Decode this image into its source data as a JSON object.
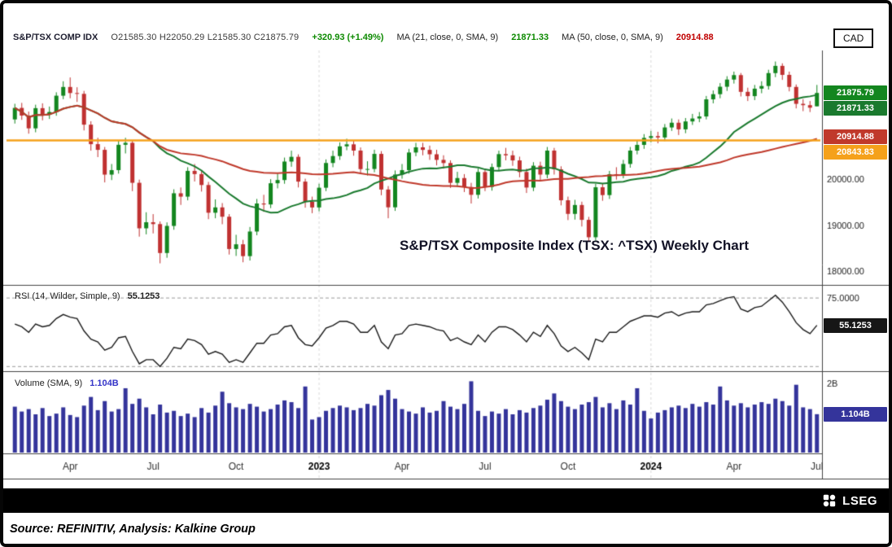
{
  "header": {
    "symbol": "S&P/TSX COMP IDX",
    "ohlc": "O21585.30  H22050.29  L21585.30  C21875.79",
    "change": "+320.93  (+1.49%)",
    "ma21_label": "MA (21, close, 0, SMA, 9)",
    "ma21_value": "21871.33",
    "ma50_label": "MA (50, close, 0, SMA, 9)",
    "ma50_value": "20914.88",
    "currency": "CAD"
  },
  "footer": {
    "logo_text": "LSEG",
    "source": "Source: REFINITIV, Analysis: Kalkine Group"
  },
  "chart_data": [
    {
      "type": "candlestick",
      "panel": "price",
      "title": "S&P/TSX Composite Index (TSX: ^TSX) Weekly Chart",
      "ylim": [
        17700,
        22800
      ],
      "up_color": "#13861F",
      "down_color": "#C03131",
      "ma": [
        {
          "period": 21,
          "color": "#1A7A2E",
          "value": 21871.33
        },
        {
          "period": 50,
          "color": "#C0392B",
          "value": 20914.88
        }
      ],
      "level": 20843.83,
      "level_color": "#F5A11B",
      "y_ticks": [
        {
          "value": 20000,
          "label": "20000.00"
        },
        {
          "value": 19000,
          "label": "19000.00"
        },
        {
          "value": 18000,
          "label": "18000.00"
        }
      ],
      "x_ticks": [
        {
          "i": 8,
          "label": "Apr"
        },
        {
          "i": 20,
          "label": "Jul"
        },
        {
          "i": 32,
          "label": "Oct"
        },
        {
          "i": 44,
          "label": "2023",
          "bold": true
        },
        {
          "i": 56,
          "label": "Apr"
        },
        {
          "i": 68,
          "label": "Jul"
        },
        {
          "i": 80,
          "label": "Oct"
        },
        {
          "i": 92,
          "label": "2024",
          "bold": true
        },
        {
          "i": 104,
          "label": "Apr"
        },
        {
          "i": 116,
          "label": "Jul"
        }
      ],
      "axis_badges": [
        {
          "label": "21875.79",
          "value": 21875.79,
          "bg": "#13861F"
        },
        {
          "label": "21871.33",
          "value": 21871.33,
          "bg": "#1A7A2E"
        },
        {
          "label": "20914.88",
          "value": 20914.88,
          "bg": "#C0392B"
        },
        {
          "label": "20843.83",
          "value": 20843.83,
          "bg": "#F5A11B"
        }
      ],
      "candles": [
        [
          21300,
          21640,
          21210,
          21550
        ],
        [
          21550,
          21660,
          21290,
          21384
        ],
        [
          21384,
          21470,
          20990,
          21106
        ],
        [
          21106,
          21620,
          21020,
          21545
        ],
        [
          21545,
          21650,
          21280,
          21402
        ],
        [
          21402,
          21580,
          21310,
          21461
        ],
        [
          21461,
          21890,
          21380,
          21816
        ],
        [
          21816,
          22130,
          21740,
          22006
        ],
        [
          22006,
          22213,
          21760,
          21874
        ],
        [
          21874,
          22000,
          21680,
          21856
        ],
        [
          21856,
          21920,
          21060,
          21186
        ],
        [
          21186,
          21260,
          20620,
          20762
        ],
        [
          20762,
          20900,
          20480,
          20638
        ],
        [
          20638,
          20700,
          19930,
          20099
        ],
        [
          20099,
          20330,
          19980,
          20197
        ],
        [
          20197,
          20840,
          20120,
          20748
        ],
        [
          20748,
          20900,
          20560,
          20791
        ],
        [
          20791,
          20850,
          19740,
          19921
        ],
        [
          19921,
          19990,
          18750,
          18931
        ],
        [
          18931,
          19280,
          18800,
          19063
        ],
        [
          19063,
          19240,
          18820,
          19023
        ],
        [
          19023,
          19080,
          18169,
          18394
        ],
        [
          18394,
          19060,
          18290,
          18983
        ],
        [
          18983,
          19780,
          18900,
          19693
        ],
        [
          19693,
          19820,
          19440,
          19620
        ],
        [
          19620,
          20260,
          19540,
          20180
        ],
        [
          20180,
          20330,
          19950,
          20111
        ],
        [
          20111,
          20180,
          19730,
          19873
        ],
        [
          19873,
          19940,
          19130,
          19270
        ],
        [
          19270,
          19560,
          19150,
          19386
        ],
        [
          19386,
          19480,
          19020,
          19183
        ],
        [
          19183,
          19240,
          18360,
          18481
        ],
        [
          18481,
          18790,
          18330,
          18583
        ],
        [
          18583,
          18680,
          18192,
          18326
        ],
        [
          18326,
          18960,
          18230,
          18861
        ],
        [
          18861,
          19570,
          18780,
          19471
        ],
        [
          19471,
          19660,
          19290,
          19450
        ],
        [
          19450,
          20000,
          19370,
          19911
        ],
        [
          19911,
          20120,
          19800,
          19981
        ],
        [
          19981,
          20470,
          19900,
          20383
        ],
        [
          20383,
          20620,
          20270,
          20486
        ],
        [
          20486,
          20540,
          19820,
          19947
        ],
        [
          19947,
          20010,
          19380,
          19507
        ],
        [
          19507,
          19620,
          19260,
          19385
        ],
        [
          19385,
          19900,
          19300,
          19814
        ],
        [
          19814,
          20430,
          19740,
          20352
        ],
        [
          20352,
          20620,
          20260,
          20503
        ],
        [
          20503,
          20800,
          20420,
          20714
        ],
        [
          20714,
          20880,
          20630,
          20758
        ],
        [
          20758,
          20850,
          20510,
          20622
        ],
        [
          20622,
          20690,
          20110,
          20219
        ],
        [
          20219,
          20390,
          20080,
          20222
        ],
        [
          20222,
          20640,
          20150,
          20550
        ],
        [
          20550,
          20610,
          19650,
          19775
        ],
        [
          19775,
          19850,
          19150,
          19388
        ],
        [
          19388,
          20190,
          19310,
          20100
        ],
        [
          20100,
          20330,
          20010,
          20196
        ],
        [
          20196,
          20660,
          20120,
          20580
        ],
        [
          20580,
          20790,
          20500,
          20693
        ],
        [
          20693,
          20790,
          20520,
          20637
        ],
        [
          20637,
          20730,
          20420,
          20542
        ],
        [
          20542,
          20640,
          20300,
          20420
        ],
        [
          20420,
          20520,
          20230,
          20351
        ],
        [
          20351,
          20410,
          19810,
          19920
        ],
        [
          19920,
          20160,
          19830,
          20024
        ],
        [
          20024,
          20110,
          19720,
          19830
        ],
        [
          19830,
          19920,
          19470,
          19660
        ],
        [
          19660,
          20230,
          19580,
          20155
        ],
        [
          20155,
          20220,
          19740,
          19831
        ],
        [
          19831,
          20340,
          19750,
          20263
        ],
        [
          20263,
          20620,
          20180,
          20545
        ],
        [
          20545,
          20680,
          20410,
          20519
        ],
        [
          20519,
          20620,
          20290,
          20408
        ],
        [
          20408,
          20490,
          20040,
          20156
        ],
        [
          20156,
          20230,
          19700,
          19818
        ],
        [
          19818,
          20370,
          19740,
          20293
        ],
        [
          20293,
          20380,
          19980,
          20100
        ],
        [
          20100,
          20700,
          20020,
          20622
        ],
        [
          20622,
          20680,
          20100,
          20214
        ],
        [
          20214,
          20280,
          19430,
          19541
        ],
        [
          19541,
          19620,
          19110,
          19245
        ],
        [
          19245,
          19550,
          19120,
          19438
        ],
        [
          19438,
          19510,
          18970,
          19115
        ],
        [
          19115,
          19180,
          18650,
          18737
        ],
        [
          18737,
          19900,
          18660,
          19824
        ],
        [
          19824,
          19910,
          19530,
          19654
        ],
        [
          19654,
          20180,
          19570,
          20108
        ],
        [
          20108,
          20260,
          19990,
          20103
        ],
        [
          20103,
          20420,
          20020,
          20331
        ],
        [
          20331,
          20700,
          20250,
          20622
        ],
        [
          20622,
          20840,
          20540,
          20746
        ],
        [
          20746,
          20980,
          20660,
          20898
        ],
        [
          20898,
          21050,
          20800,
          20937
        ],
        [
          20937,
          21030,
          20780,
          20907
        ],
        [
          20907,
          21200,
          20830,
          21125
        ],
        [
          21125,
          21320,
          21050,
          21228
        ],
        [
          21228,
          21300,
          20960,
          21084
        ],
        [
          21084,
          21330,
          21000,
          21256
        ],
        [
          21256,
          21420,
          21180,
          21320
        ],
        [
          21320,
          21460,
          21240,
          21364
        ],
        [
          21364,
          21810,
          21300,
          21737
        ],
        [
          21737,
          21930,
          21650,
          21849
        ],
        [
          21849,
          22090,
          21760,
          22011
        ],
        [
          22011,
          22240,
          21920,
          22167
        ],
        [
          22167,
          22340,
          22080,
          22264
        ],
        [
          22264,
          22310,
          21800,
          21900
        ],
        [
          21900,
          21990,
          21700,
          21807
        ],
        [
          21807,
          22050,
          21720,
          21969
        ],
        [
          21969,
          22130,
          21870,
          22027
        ],
        [
          22027,
          22380,
          21950,
          22308
        ],
        [
          22308,
          22560,
          22220,
          22465
        ],
        [
          22465,
          22520,
          22160,
          22269
        ],
        [
          22269,
          22340,
          21910,
          22007
        ],
        [
          22007,
          22060,
          21540,
          21639
        ],
        [
          21639,
          21740,
          21480,
          21610
        ],
        [
          21610,
          21700,
          21460,
          21554.86
        ],
        [
          21585.3,
          22050.29,
          21585.3,
          21875.79
        ]
      ]
    },
    {
      "type": "line",
      "panel": "rsi",
      "label": "RSI (14, Wilder, Simple, 9)",
      "value_label": "55.1253",
      "badge": {
        "label": "55.1253",
        "value": 55.1253,
        "bg": "#161616"
      },
      "ylim": [
        24,
        81
      ],
      "bands": [
        75,
        25
      ],
      "band_labels": [
        {
          "value": 75,
          "label": "75.0000"
        }
      ],
      "color": "#1A1A1A",
      "values": [
        56,
        54,
        50,
        56,
        54,
        55,
        60,
        63,
        61,
        60,
        51,
        45,
        43,
        37,
        39,
        46,
        47,
        36,
        27,
        30,
        30,
        25,
        31,
        39,
        38,
        45,
        44,
        41,
        34,
        36,
        34,
        28,
        30,
        28,
        35,
        42,
        42,
        48,
        49,
        54,
        55,
        46,
        41,
        40,
        46,
        53,
        55,
        58,
        58,
        56,
        50,
        50,
        55,
        43,
        38,
        48,
        49,
        55,
        56,
        55,
        54,
        52,
        51,
        44,
        46,
        43,
        41,
        48,
        43,
        50,
        54,
        54,
        52,
        48,
        43,
        50,
        47,
        55,
        49,
        40,
        36,
        39,
        35,
        30,
        45,
        43,
        50,
        50,
        54,
        58,
        60,
        62,
        62,
        61,
        64,
        65,
        62,
        64,
        65,
        65,
        70,
        71,
        73,
        75,
        76,
        67,
        65,
        68,
        69,
        73,
        77,
        72,
        65,
        57,
        52,
        49,
        55.1
      ]
    },
    {
      "type": "bar",
      "panel": "volume",
      "label": "Volume (SMA, 9)",
      "value_label": "1.104B",
      "badge": {
        "label": "1.104B",
        "value": 1.104,
        "bg": "#34349B"
      },
      "ylim": [
        0,
        2.2
      ],
      "ticks": [
        {
          "value": 2,
          "label": "2B"
        }
      ],
      "color": "#34349B",
      "values": [
        1.32,
        1.18,
        1.25,
        1.1,
        1.28,
        1.05,
        1.12,
        1.3,
        1.08,
        1.02,
        1.35,
        1.6,
        1.22,
        1.48,
        1.18,
        1.25,
        1.85,
        1.4,
        1.55,
        1.3,
        1.1,
        1.38,
        1.15,
        1.2,
        1.05,
        1.12,
        1.02,
        1.28,
        1.15,
        1.35,
        1.75,
        1.42,
        1.3,
        1.25,
        1.4,
        1.32,
        1.18,
        1.25,
        1.38,
        1.5,
        1.45,
        1.28,
        1.9,
        0.95,
        1.02,
        1.2,
        1.28,
        1.35,
        1.3,
        1.22,
        1.28,
        1.4,
        1.35,
        1.65,
        1.8,
        1.55,
        1.25,
        1.18,
        1.12,
        1.3,
        1.15,
        1.2,
        1.48,
        1.32,
        1.25,
        1.4,
        2.05,
        1.2,
        1.05,
        1.18,
        1.12,
        1.25,
        1.1,
        1.22,
        1.15,
        1.28,
        1.35,
        1.52,
        1.7,
        1.48,
        1.32,
        1.25,
        1.38,
        1.45,
        1.6,
        1.3,
        1.42,
        1.25,
        1.5,
        1.38,
        1.85,
        1.2,
        0.98,
        1.15,
        1.22,
        1.3,
        1.35,
        1.28,
        1.4,
        1.32,
        1.45,
        1.38,
        1.9,
        1.5,
        1.35,
        1.42,
        1.3,
        1.38,
        1.45,
        1.4,
        1.55,
        1.48,
        1.35,
        1.95,
        1.3,
        1.25,
        1.104
      ]
    }
  ]
}
